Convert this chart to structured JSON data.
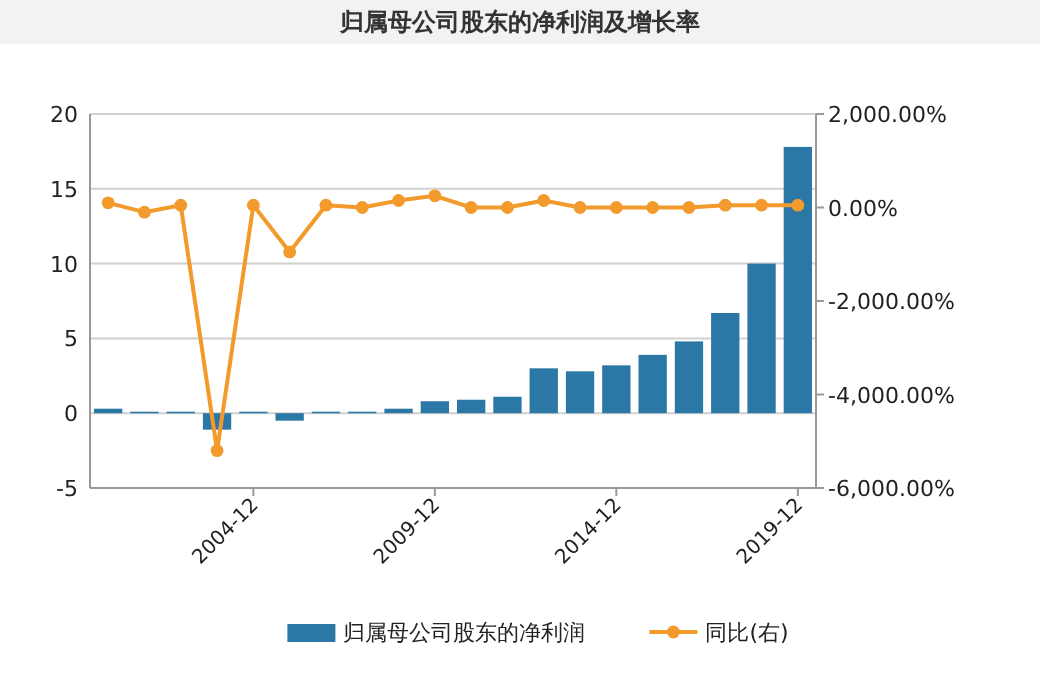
{
  "chart_data": {
    "type": "bar",
    "title": "归属母公司股东的净利润及增长率",
    "categories": [
      null,
      null,
      null,
      null,
      "2004-12",
      null,
      null,
      null,
      null,
      "2009-12",
      null,
      null,
      null,
      null,
      "2014-12",
      null,
      null,
      null,
      null,
      "2019-12"
    ],
    "series": [
      {
        "name": "归属母公司股东的净利润",
        "color": "#2b77a5",
        "values": [
          0.3,
          0.1,
          0.1,
          -1.1,
          0.1,
          -0.5,
          0.1,
          0.1,
          0.3,
          0.8,
          0.9,
          1.1,
          3.0,
          2.8,
          3.2,
          3.9,
          4.8,
          6.7,
          10.0,
          17.8
        ]
      },
      {
        "name": "同比(右)",
        "type": "line",
        "axis": "y2",
        "marker": "circle",
        "color": "#f39a2d",
        "values": [
          100,
          -100,
          50,
          -5200,
          50,
          -950,
          50,
          0,
          150,
          250,
          0,
          0,
          150,
          0,
          0,
          0,
          0,
          50,
          50,
          50
        ]
      }
    ],
    "ylim": [
      -5,
      20
    ],
    "yticks": [
      -5,
      0,
      5,
      10,
      15,
      20
    ],
    "y2lim": [
      -6000,
      2000
    ],
    "y2ticks": [
      {
        "value": -6000,
        "label": "-6,000.00%"
      },
      {
        "value": -4000,
        "label": "-4,000.00%"
      },
      {
        "value": -2000,
        "label": "-2,000.00%"
      },
      {
        "value": 0,
        "label": "0.00%"
      },
      {
        "value": 2000,
        "label": "2,000.00%"
      }
    ],
    "grid": "y",
    "legend": "bottom"
  }
}
